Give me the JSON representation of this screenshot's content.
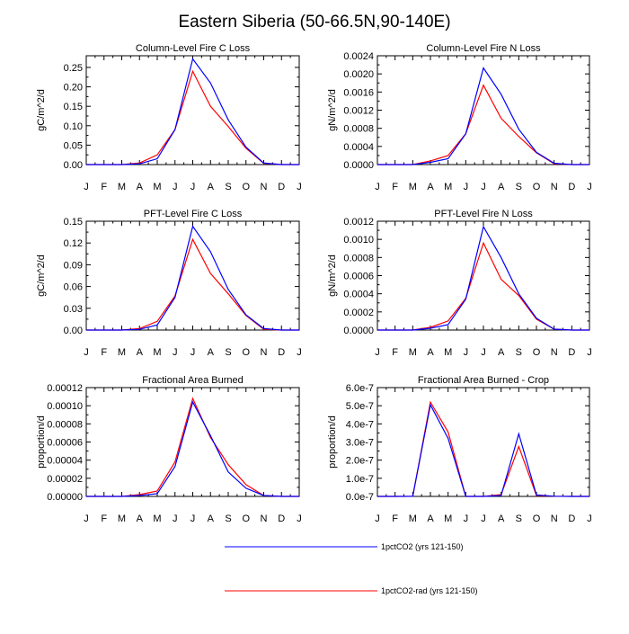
{
  "figure_title": "Eastern Siberia (50-66.5N,90-140E)",
  "colors": {
    "series_0": "#0000ff",
    "series_1": "#ff0000",
    "axis": "#000000"
  },
  "legend": [
    {
      "label": "1pctCO2 (yrs 121-150)",
      "color": "#0000ff"
    },
    {
      "label": "1pctCO2-rad (yrs 121-150)",
      "color": "#ff0000"
    }
  ],
  "chart_data": [
    {
      "type": "line",
      "title": "Column-Level Fire C Loss",
      "xlabel": "",
      "ylabel": "gC/m^2/d",
      "categories": [
        "J",
        "F",
        "M",
        "A",
        "M",
        "J",
        "J",
        "A",
        "S",
        "O",
        "N",
        "D",
        "J"
      ],
      "ylim": [
        0,
        0.28
      ],
      "yticks": [
        "0.00",
        "0.05",
        "0.10",
        "0.15",
        "0.20",
        "0.25"
      ],
      "yticks_values": [
        0,
        0.05,
        0.1,
        0.15,
        0.2,
        0.25
      ],
      "series": [
        {
          "name": "1pctCO2 (yrs 121-150)",
          "values": [
            0,
            0,
            0,
            0.002,
            0.015,
            0.09,
            0.272,
            0.21,
            0.115,
            0.045,
            0.004,
            0,
            0
          ]
        },
        {
          "name": "1pctCO2-rad (yrs 121-150)",
          "values": [
            0,
            0,
            0,
            0.004,
            0.025,
            0.09,
            0.24,
            0.15,
            0.098,
            0.042,
            0.003,
            0,
            0
          ]
        }
      ],
      "grid": false
    },
    {
      "type": "line",
      "title": "Column-Level Fire N Loss",
      "xlabel": "",
      "ylabel": "gN/m^2/d",
      "categories": [
        "J",
        "F",
        "M",
        "A",
        "M",
        "J",
        "J",
        "A",
        "S",
        "O",
        "N",
        "D",
        "J"
      ],
      "ylim": [
        0,
        0.0024
      ],
      "yticks": [
        "0.0000",
        "0.0004",
        "0.0008",
        "0.0012",
        "0.0016",
        "0.0020",
        "0.0024"
      ],
      "yticks_values": [
        0,
        0.0004,
        0.0008,
        0.0012,
        0.0016,
        0.002,
        0.0024
      ],
      "series": [
        {
          "name": "1pctCO2 (yrs 121-150)",
          "values": [
            0,
            0,
            0,
            5e-05,
            0.00013,
            0.00068,
            0.00213,
            0.00155,
            0.00078,
            0.00027,
            3e-05,
            0,
            0
          ]
        },
        {
          "name": "1pctCO2-rad (yrs 121-150)",
          "values": [
            0,
            0,
            0,
            8e-05,
            0.0002,
            0.00068,
            0.00175,
            0.00102,
            0.00062,
            0.00026,
            2e-05,
            0,
            0
          ]
        }
      ],
      "grid": false
    },
    {
      "type": "line",
      "title": "PFT-Level Fire C Loss",
      "xlabel": "",
      "ylabel": "gC/m^2/d",
      "categories": [
        "J",
        "F",
        "M",
        "A",
        "M",
        "J",
        "J",
        "A",
        "S",
        "O",
        "N",
        "D",
        "J"
      ],
      "ylim": [
        0,
        0.15
      ],
      "yticks": [
        "0.00",
        "0.03",
        "0.06",
        "0.09",
        "0.12",
        "0.15"
      ],
      "yticks_values": [
        0,
        0.03,
        0.06,
        0.09,
        0.12,
        0.15
      ],
      "series": [
        {
          "name": "1pctCO2 (yrs 121-150)",
          "values": [
            0,
            0,
            0,
            0.001,
            0.007,
            0.045,
            0.143,
            0.108,
            0.056,
            0.021,
            0.002,
            0,
            0
          ]
        },
        {
          "name": "1pctCO2-rad (yrs 121-150)",
          "values": [
            0,
            0,
            0,
            0.002,
            0.012,
            0.047,
            0.125,
            0.078,
            0.05,
            0.02,
            0.001,
            0,
            0
          ]
        }
      ],
      "grid": false
    },
    {
      "type": "line",
      "title": "PFT-Level Fire N Loss",
      "xlabel": "",
      "ylabel": "gN/m^2/d",
      "categories": [
        "J",
        "F",
        "M",
        "A",
        "M",
        "J",
        "J",
        "A",
        "S",
        "O",
        "N",
        "D",
        "J"
      ],
      "ylim": [
        0,
        0.0012
      ],
      "yticks": [
        "0.0000",
        "0.0002",
        "0.0004",
        "0.0006",
        "0.0008",
        "0.0010",
        "0.0012"
      ],
      "yticks_values": [
        0,
        0.0002,
        0.0004,
        0.0006,
        0.0008,
        0.001,
        0.0012
      ],
      "series": [
        {
          "name": "1pctCO2 (yrs 121-150)",
          "values": [
            0,
            0,
            0,
            2e-05,
            6e-05,
            0.00034,
            0.00114,
            0.0008,
            0.0004,
            0.00013,
            1e-05,
            0,
            0
          ]
        },
        {
          "name": "1pctCO2-rad (yrs 121-150)",
          "values": [
            0,
            0,
            0,
            3e-05,
            0.0001,
            0.00035,
            0.00096,
            0.00056,
            0.00038,
            0.00012,
            1e-05,
            0,
            0
          ]
        }
      ],
      "grid": false
    },
    {
      "type": "line",
      "title": "Fractional Area Burned",
      "xlabel": "",
      "ylabel": "proportion/d",
      "categories": [
        "J",
        "F",
        "M",
        "A",
        "M",
        "J",
        "J",
        "A",
        "S",
        "O",
        "N",
        "D",
        "J"
      ],
      "ylim": [
        0,
        0.00012
      ],
      "yticks": [
        "0.00000",
        "0.00002",
        "0.00004",
        "0.00006",
        "0.00008",
        "0.00010",
        "0.00012"
      ],
      "yticks_values": [
        0,
        2e-05,
        4e-05,
        6e-05,
        8e-05,
        0.0001,
        0.00012
      ],
      "series": [
        {
          "name": "1pctCO2 (yrs 121-150)",
          "values": [
            0,
            0,
            0,
            1e-06,
            3e-06,
            3.3e-05,
            0.000104,
            6.7e-05,
            2.7e-05,
            9e-06,
            1e-06,
            0,
            0
          ]
        },
        {
          "name": "1pctCO2-rad (yrs 121-150)",
          "values": [
            0,
            0,
            0,
            2e-06,
            6e-06,
            3.8e-05,
            0.000108,
            6.5e-05,
            3.5e-05,
            1.3e-05,
            1e-06,
            0,
            0
          ]
        }
      ],
      "grid": false
    },
    {
      "type": "line",
      "title": "Fractional Area Burned - Crop",
      "xlabel": "",
      "ylabel": "proportion/d",
      "categories": [
        "J",
        "F",
        "M",
        "A",
        "M",
        "J",
        "J",
        "A",
        "S",
        "O",
        "N",
        "D",
        "J"
      ],
      "ylim": [
        0,
        6e-07
      ],
      "yticks": [
        "0.0e-7",
        "1.0e-7",
        "2.0e-7",
        "3.0e-7",
        "4.0e-7",
        "5.0e-7",
        "6.0e-7"
      ],
      "yticks_values": [
        0,
        1e-07,
        2e-07,
        3e-07,
        4e-07,
        5e-07,
        6e-07
      ],
      "series": [
        {
          "name": "1pctCO2 (yrs 121-150)",
          "values": [
            0,
            0,
            5e-10,
            5.05e-07,
            3.2e-07,
            0,
            0,
            5e-09,
            3.45e-07,
            8e-09,
            1e-09,
            0,
            0
          ]
        },
        {
          "name": "1pctCO2-rad (yrs 121-150)",
          "values": [
            0,
            0,
            5e-10,
            5.2e-07,
            3.55e-07,
            0,
            0,
            1e-08,
            2.75e-07,
            5e-09,
            1e-09,
            0,
            0
          ]
        }
      ],
      "grid": false
    }
  ]
}
